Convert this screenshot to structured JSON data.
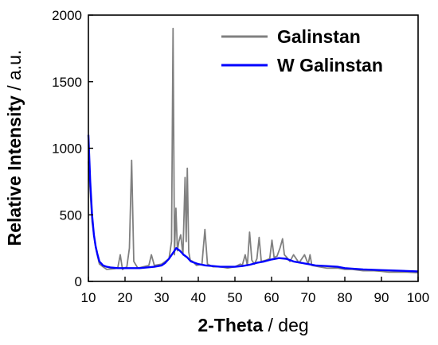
{
  "chart_data": {
    "type": "line",
    "xlabel_main": "2-Theta",
    "xlabel_unit": " / deg",
    "ylabel_main": "Relative Intensity",
    "ylabel_unit": " / a.u.",
    "xlim": [
      10,
      100
    ],
    "ylim": [
      0,
      2000
    ],
    "x_ticks": [
      10,
      20,
      30,
      40,
      50,
      60,
      70,
      80,
      90,
      100
    ],
    "y_ticks": [
      0,
      500,
      1000,
      1500,
      2000
    ],
    "grid": false,
    "legend_position": "top-right",
    "series": [
      {
        "name": "Galinstan",
        "color": "#808080",
        "x": [
          10,
          11,
          12,
          13,
          14,
          15,
          17,
          18,
          18.7,
          19.3,
          20.5,
          21.2,
          21.8,
          22.4,
          23.5,
          25,
          26.5,
          27.2,
          28,
          30,
          31,
          32,
          32.7,
          33.1,
          33.5,
          33.9,
          34.3,
          34.7,
          35.2,
          35.8,
          36.4,
          36.7,
          37.0,
          37.4,
          37.8,
          38.5,
          39.5,
          41,
          41.8,
          42.5,
          44,
          46,
          48,
          50,
          51.5,
          52,
          52.8,
          53.4,
          54.0,
          54.6,
          55.3,
          56,
          56.6,
          57.2,
          58.5,
          59.5,
          60.1,
          60.7,
          61.5,
          62.3,
          63.0,
          63.5,
          64.2,
          65,
          66,
          67.5,
          68.5,
          69,
          70,
          70.5,
          71,
          73,
          75,
          78,
          80,
          82,
          85,
          88,
          90,
          92,
          95,
          97,
          100
        ],
        "values": [
          900,
          450,
          250,
          130,
          110,
          90,
          95,
          100,
          200,
          90,
          110,
          250,
          910,
          150,
          100,
          110,
          120,
          200,
          120,
          130,
          150,
          170,
          300,
          1900,
          200,
          550,
          230,
          300,
          350,
          200,
          780,
          300,
          850,
          220,
          160,
          150,
          120,
          130,
          390,
          130,
          110,
          110,
          100,
          110,
          130,
          120,
          200,
          120,
          370,
          160,
          130,
          170,
          330,
          150,
          160,
          170,
          310,
          180,
          190,
          250,
          320,
          200,
          180,
          150,
          200,
          140,
          180,
          200,
          130,
          200,
          120,
          110,
          100,
          100,
          90,
          90,
          80,
          80,
          75,
          70,
          70,
          70,
          65
        ]
      },
      {
        "name": "W Galinstan",
        "color": "#0000ff",
        "x": [
          10,
          10.5,
          11,
          11.5,
          12,
          12.5,
          13,
          14,
          15,
          16,
          18,
          20,
          22,
          24,
          26,
          28,
          30,
          31,
          32,
          33,
          34,
          35,
          36,
          37,
          38,
          40,
          42,
          44,
          46,
          48,
          50,
          52,
          54,
          56,
          58,
          60,
          62,
          64,
          66,
          68,
          70,
          72,
          75,
          78,
          80,
          85,
          90,
          95,
          100
        ],
        "values": [
          1100,
          750,
          500,
          350,
          260,
          200,
          150,
          120,
          110,
          105,
          100,
          100,
          100,
          100,
          105,
          110,
          120,
          140,
          170,
          210,
          250,
          230,
          200,
          180,
          150,
          130,
          120,
          115,
          110,
          110,
          110,
          115,
          125,
          140,
          150,
          165,
          175,
          170,
          150,
          140,
          130,
          120,
          115,
          110,
          100,
          90,
          85,
          80,
          75
        ]
      }
    ]
  }
}
